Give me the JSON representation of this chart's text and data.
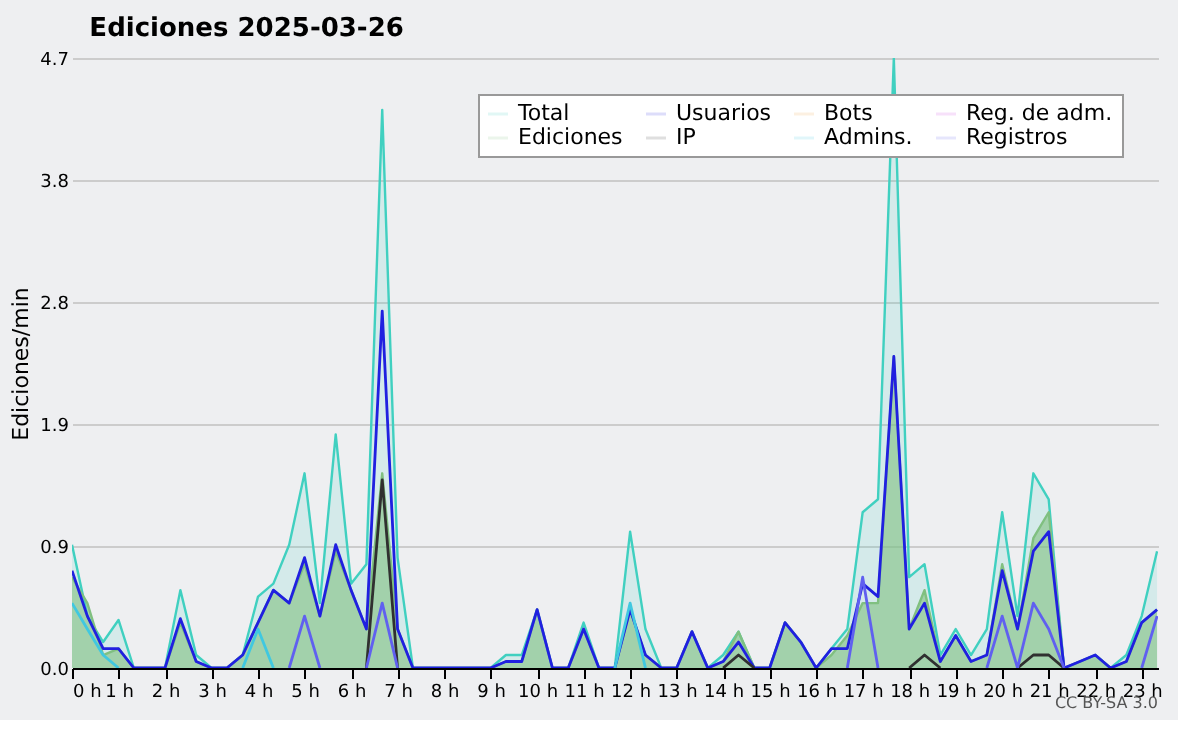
{
  "chart_data": {
    "type": "line",
    "title": "Ediciones  2025-03-26",
    "ylabel": "Ediciones/min",
    "x": [
      0,
      0.33,
      0.67,
      1,
      1.33,
      1.67,
      2,
      2.33,
      2.67,
      3,
      3.33,
      3.67,
      4,
      4.33,
      4.67,
      5,
      5.33,
      5.67,
      6,
      6.33,
      6.67,
      7,
      7.33,
      7.67,
      8,
      8.33,
      8.67,
      9,
      9.33,
      9.67,
      10,
      10.33,
      10.67,
      11,
      11.33,
      11.67,
      12,
      12.33,
      12.67,
      13,
      13.33,
      13.67,
      14,
      14.33,
      14.67,
      15,
      15.33,
      15.67,
      16,
      16.33,
      16.67,
      17,
      17.33,
      17.67,
      18,
      18.33,
      18.67,
      19,
      19.33,
      19.67,
      20,
      20.33,
      20.67,
      21,
      21.33,
      21.67,
      22,
      22.33,
      22.67,
      23,
      23.33
    ],
    "series": [
      {
        "name": "Total",
        "type": "area",
        "color": "#40d0c0",
        "values": [
          0.95,
          0.4,
          0.2,
          0.37,
          0,
          0,
          0,
          0.6,
          0.1,
          0,
          0,
          0.1,
          0.55,
          0.65,
          0.95,
          1.5,
          0.5,
          1.8,
          0.65,
          0.8,
          4.3,
          0.85,
          0,
          0,
          0,
          0,
          0,
          0,
          0.1,
          0.1,
          0.45,
          0,
          0,
          0.35,
          0,
          0,
          1.05,
          0.3,
          0,
          0,
          0.28,
          0,
          0.1,
          0.28,
          0,
          0,
          0.35,
          0.2,
          0,
          0.15,
          0.3,
          1.2,
          1.3,
          4.7,
          0.7,
          0.8,
          0.1,
          0.3,
          0.1,
          0.3,
          1.2,
          0.4,
          1.5,
          1.3,
          0,
          0.05,
          0.1,
          0,
          0.1,
          0.4,
          0.9
        ]
      },
      {
        "name": "Ediciones",
        "type": "area",
        "color": "#80c080",
        "values": [
          0.7,
          0.5,
          0.1,
          0.15,
          0,
          0,
          0,
          0.35,
          0.05,
          0,
          0,
          0.1,
          0.35,
          0.6,
          0.5,
          0.8,
          0.4,
          0.9,
          0.6,
          0.3,
          1.5,
          0.3,
          0,
          0,
          0,
          0,
          0,
          0,
          0.05,
          0.05,
          0.45,
          0,
          0,
          0.3,
          0,
          0,
          0.45,
          0.1,
          0,
          0,
          0.28,
          0,
          0.05,
          0.28,
          0,
          0,
          0.35,
          0.2,
          0,
          0.1,
          0.25,
          0.5,
          0.5,
          2.4,
          0.3,
          0.6,
          0.05,
          0.25,
          0.05,
          0.1,
          0.8,
          0.3,
          1.0,
          1.2,
          0,
          0.05,
          0.1,
          0,
          0.05,
          0.35,
          0.45
        ]
      },
      {
        "name": "Usuarios",
        "color": "#2020e0",
        "values": [
          0.75,
          0.4,
          0.15,
          0.15,
          0,
          0,
          0,
          0.38,
          0.05,
          0,
          0,
          0.1,
          0.35,
          0.6,
          0.5,
          0.85,
          0.4,
          0.95,
          0.6,
          0.3,
          2.75,
          0.3,
          0,
          0,
          0,
          0,
          0,
          0,
          0.05,
          0.05,
          0.45,
          0,
          0,
          0.3,
          0,
          0,
          0.45,
          0.1,
          0,
          0,
          0.28,
          0,
          0.05,
          0.2,
          0,
          0,
          0.35,
          0.2,
          0,
          0.15,
          0.15,
          0.65,
          0.55,
          2.4,
          0.3,
          0.5,
          0.05,
          0.25,
          0.05,
          0.1,
          0.75,
          0.3,
          0.9,
          1.05,
          0,
          0.05,
          0.1,
          0,
          0.05,
          0.35,
          0.45
        ]
      },
      {
        "name": "IP",
        "color": "#303030",
        "values": [
          null,
          null,
          null,
          null,
          null,
          null,
          null,
          null,
          null,
          null,
          null,
          null,
          null,
          null,
          null,
          null,
          null,
          null,
          null,
          0,
          1.45,
          0,
          null,
          null,
          null,
          null,
          null,
          null,
          null,
          null,
          null,
          null,
          null,
          null,
          null,
          null,
          null,
          null,
          null,
          null,
          null,
          null,
          0,
          0.1,
          0,
          null,
          null,
          null,
          null,
          null,
          null,
          null,
          null,
          null,
          0,
          0.1,
          0,
          null,
          null,
          null,
          null,
          0,
          0.1,
          0.1,
          0,
          null,
          null,
          null,
          null,
          null,
          null
        ]
      },
      {
        "name": "Bots",
        "color": "#f0a040",
        "values": [
          null,
          null,
          null,
          null,
          null,
          null,
          null,
          null,
          null,
          null,
          null,
          null,
          null,
          null,
          null,
          null,
          null,
          null,
          null,
          null,
          null,
          null,
          null,
          null,
          null,
          null,
          null,
          null,
          null,
          null,
          null,
          null,
          null,
          null,
          null,
          null,
          null,
          null,
          null,
          null,
          null,
          null,
          null,
          null,
          null,
          null,
          null,
          null,
          null,
          null,
          null,
          null,
          null,
          null,
          null,
          null,
          null,
          null,
          null,
          null,
          null,
          null,
          null,
          null,
          null,
          null,
          null,
          null,
          null,
          null,
          null
        ]
      },
      {
        "name": "Admins.",
        "color": "#40c8e0",
        "values": [
          0.5,
          0.3,
          0.1,
          0,
          null,
          null,
          null,
          null,
          null,
          null,
          null,
          0,
          0.3,
          0,
          null,
          null,
          null,
          null,
          null,
          null,
          null,
          null,
          null,
          null,
          null,
          null,
          null,
          null,
          null,
          null,
          null,
          null,
          null,
          null,
          null,
          0,
          0.5,
          0,
          null,
          null,
          null,
          null,
          null,
          null,
          null,
          null,
          null,
          null,
          null,
          null,
          null,
          null,
          null,
          null,
          null,
          null,
          null,
          null,
          null,
          null,
          null,
          null,
          null,
          null,
          null,
          null,
          null,
          null,
          null,
          null,
          null
        ]
      },
      {
        "name": "Reg. de adm.",
        "color": "#d040e0",
        "values": [
          null,
          null,
          null,
          null,
          null,
          null,
          null,
          null,
          null,
          null,
          null,
          null,
          null,
          null,
          null,
          null,
          null,
          null,
          null,
          null,
          null,
          null,
          null,
          null,
          null,
          null,
          null,
          null,
          null,
          null,
          null,
          null,
          null,
          null,
          null,
          null,
          null,
          null,
          null,
          null,
          null,
          null,
          null,
          null,
          null,
          null,
          null,
          null,
          null,
          null,
          null,
          null,
          null,
          null,
          null,
          null,
          null,
          null,
          null,
          null,
          null,
          null,
          null,
          null,
          null,
          null,
          null,
          null,
          null,
          null,
          null
        ]
      },
      {
        "name": "Registros",
        "color": "#6060f0",
        "values": [
          null,
          null,
          null,
          null,
          null,
          null,
          null,
          null,
          null,
          null,
          null,
          null,
          null,
          null,
          0,
          0.4,
          0,
          null,
          null,
          0,
          0.5,
          0,
          null,
          null,
          null,
          null,
          null,
          null,
          null,
          null,
          null,
          null,
          null,
          null,
          null,
          null,
          null,
          null,
          null,
          null,
          null,
          null,
          null,
          null,
          null,
          null,
          null,
          null,
          null,
          null,
          0,
          0.7,
          0,
          null,
          null,
          null,
          null,
          null,
          null,
          0,
          0.4,
          0,
          0.5,
          0.3,
          0,
          null,
          null,
          null,
          null,
          0,
          0.4
        ]
      }
    ],
    "xlim": [
      0,
      23.35
    ],
    "xticks": [
      {
        "value": 0,
        "label": "0 h"
      },
      {
        "value": 1,
        "label": "1 h"
      },
      {
        "value": 2,
        "label": "2 h"
      },
      {
        "value": 3,
        "label": "3 h"
      },
      {
        "value": 4,
        "label": "4 h"
      },
      {
        "value": 5,
        "label": "5 h"
      },
      {
        "value": 6,
        "label": "6 h"
      },
      {
        "value": 7,
        "label": "7 h"
      },
      {
        "value": 8,
        "label": "8 h"
      },
      {
        "value": 9,
        "label": "9 h"
      },
      {
        "value": 10,
        "label": "10 h"
      },
      {
        "value": 11,
        "label": "11 h"
      },
      {
        "value": 12,
        "label": "12 h"
      },
      {
        "value": 13,
        "label": "13 h"
      },
      {
        "value": 14,
        "label": "14 h"
      },
      {
        "value": 15,
        "label": "15 h"
      },
      {
        "value": 16,
        "label": "16 h"
      },
      {
        "value": 17,
        "label": "17 h"
      },
      {
        "value": 18,
        "label": "18 h"
      },
      {
        "value": 19,
        "label": "19 h"
      },
      {
        "value": 20,
        "label": "20 h"
      },
      {
        "value": 21,
        "label": "21 h"
      },
      {
        "value": 22,
        "label": "22 h"
      },
      {
        "value": 23,
        "label": "23 h"
      }
    ],
    "ylim": [
      0,
      4.7
    ],
    "yticks": [
      {
        "value": 0,
        "label": "0.0"
      },
      {
        "value": 0.94,
        "label": "0.9"
      },
      {
        "value": 1.88,
        "label": "1.9"
      },
      {
        "value": 2.82,
        "label": "2.8"
      },
      {
        "value": 3.76,
        "label": "3.8"
      },
      {
        "value": 4.7,
        "label": "4.7"
      }
    ],
    "grid": "y",
    "legend": "top right",
    "annotations": [
      "CC BY-SA 3.0"
    ]
  }
}
